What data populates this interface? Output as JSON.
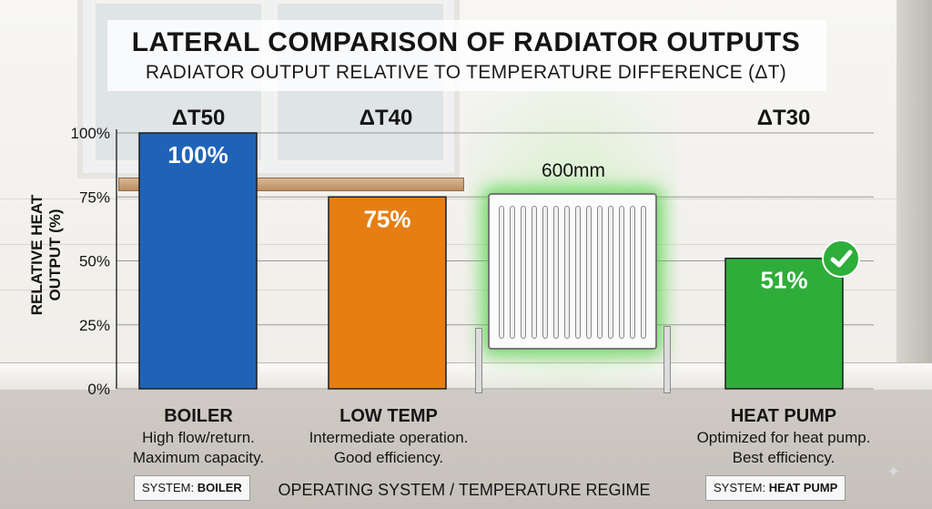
{
  "title": "LATERAL COMPARISON OF RADIATOR OUTPUTS",
  "subtitle": "RADIATOR OUTPUT RELATIVE TO TEMPERATURE DIFFERENCE (ΔT)",
  "radiator_label": "600mm",
  "xlabel": "OPERATING SYSTEM / TEMPERATURE REGIME",
  "ylabel": "RELATIVE HEAT OUTPUT (%)",
  "columns": [
    {
      "dt": "ΔT50",
      "name": "BOILER",
      "desc1": "High flow/return.",
      "desc2": "Maximum capacity.",
      "sys_prefix": "SYSTEM:",
      "sys_name": "BOILER"
    },
    {
      "dt": "ΔT40",
      "name": "LOW TEMP",
      "desc1": "Intermediate operation.",
      "desc2": "Good efficiency."
    },
    {
      "dt": "ΔT30",
      "name": "HEAT PUMP",
      "desc1": "Optimized for heat pump.",
      "desc2": "Best efficiency.",
      "sys_prefix": "SYSTEM:",
      "sys_name": "HEAT PUMP"
    }
  ],
  "colors": {
    "boiler": "#1f63b8",
    "low_temp": "#e67e14",
    "heat_pump": "#2fad3a",
    "check": "#2eae3a"
  },
  "icons": {
    "check": "check-circle-icon",
    "sparkle": "sparkle-icon"
  },
  "chart_data": {
    "type": "bar",
    "categories": [
      "BOILER",
      "LOW TEMP",
      "HEAT PUMP"
    ],
    "values": [
      100,
      75,
      51
    ],
    "data_labels": [
      "100%",
      "75%",
      "51%"
    ],
    "ylabel": "RELATIVE HEAT OUTPUT (%)",
    "xlabel": "OPERATING SYSTEM / TEMPERATURE REGIME",
    "ylim": [
      0,
      100
    ],
    "yticks": [
      0,
      25,
      50,
      75,
      100
    ],
    "ytick_labels": [
      "0%",
      "25%",
      "50%",
      "75%",
      "100%"
    ],
    "grid": true
  }
}
